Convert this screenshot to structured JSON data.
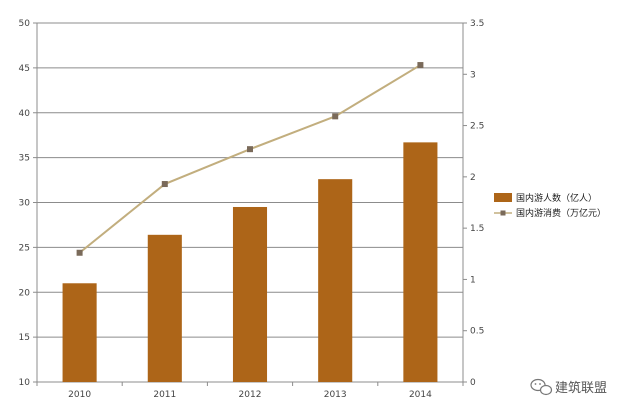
{
  "chart_data": {
    "type": "bar",
    "title": "",
    "categories": [
      "2010",
      "2011",
      "2012",
      "2013",
      "2014"
    ],
    "series": [
      {
        "name": "国内游人数（亿人）",
        "type": "bar",
        "axis": "left",
        "color": "#AD6518",
        "values": [
          21.0,
          26.4,
          29.5,
          32.6,
          36.7
        ]
      },
      {
        "name": "国内游消费（万亿元）",
        "type": "line",
        "axis": "right",
        "color": "#C2AE7E",
        "marker_color": "#7A6A5A",
        "values": [
          1.26,
          1.93,
          2.27,
          2.59,
          3.09
        ]
      }
    ],
    "y_left": {
      "min": 10,
      "max": 50,
      "ticks": [
        "10",
        "15",
        "20",
        "25",
        "30",
        "35",
        "40",
        "45",
        "50"
      ]
    },
    "y_right": {
      "min": 0,
      "max": 3.5,
      "ticks": [
        "0",
        "0.5",
        "1",
        "1.5",
        "2",
        "2.5",
        "3",
        "3.5"
      ]
    },
    "grid": true,
    "legend_position": "right"
  },
  "watermark": {
    "text": "建筑联盟",
    "icon": "wechat-icon"
  }
}
